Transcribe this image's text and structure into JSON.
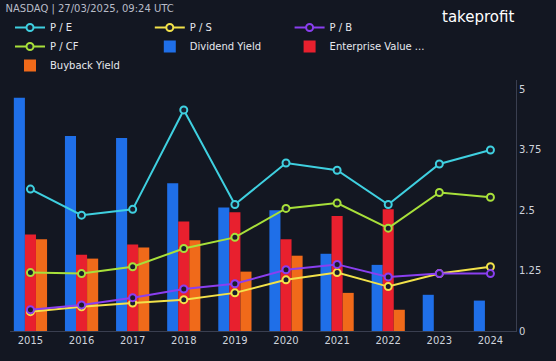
{
  "chart_data": {
    "type": "line",
    "title": "NASDAQ | 27/03/2025, 09:24 UTC",
    "annotations": [
      {
        "text": "takeprofit"
      }
    ],
    "x": [
      2015,
      2016,
      2017,
      2018,
      2019,
      2020,
      2021,
      2022,
      2023,
      2024
    ],
    "xlim": [
      2014.6,
      2024.5
    ],
    "xticks": [
      2015,
      2016,
      2017,
      2018,
      2019,
      2020,
      2021,
      2022,
      2023,
      2024
    ],
    "ylim": [
      0,
      5.2
    ],
    "yticks": [
      0,
      1.25,
      2.5,
      3.75,
      5
    ],
    "grid": false,
    "legend": "top",
    "series": [
      {
        "name": "P / E",
        "type": "line",
        "marker": "circle",
        "color": "#3fd0e0",
        "values": [
          2.94,
          2.4,
          2.52,
          4.58,
          2.62,
          3.48,
          3.33,
          2.62,
          3.46,
          3.75
        ]
      },
      {
        "name": "P / S",
        "type": "line",
        "marker": "circle",
        "color": "#f2e24a",
        "values": [
          0.4,
          0.5,
          0.58,
          0.65,
          0.79,
          1.06,
          1.21,
          0.92,
          1.19,
          1.33
        ]
      },
      {
        "name": "P / B",
        "type": "line",
        "marker": "circle",
        "color": "#8a3ff0",
        "values": [
          0.44,
          0.54,
          0.69,
          0.87,
          0.98,
          1.27,
          1.38,
          1.12,
          1.19,
          1.19
        ]
      },
      {
        "name": "P / CF",
        "type": "line",
        "marker": "circle",
        "color": "#a8e03a",
        "values": [
          1.21,
          1.19,
          1.33,
          1.71,
          1.94,
          2.54,
          2.65,
          2.13,
          2.87,
          2.77
        ]
      },
      {
        "name": "Dividend Yield",
        "type": "bar",
        "color": "#1f6fe8",
        "values": [
          4.83,
          4.04,
          4.0,
          3.06,
          2.56,
          2.5,
          1.6,
          1.37,
          0.75,
          0.63
        ]
      },
      {
        "name": "Enterprise Value ...",
        "type": "bar",
        "color": "#e8202e",
        "values": [
          2.0,
          1.58,
          1.79,
          2.27,
          2.46,
          1.9,
          2.38,
          2.52,
          null,
          null
        ]
      },
      {
        "name": "Buyback Yield",
        "type": "bar",
        "color": "#f06a1a",
        "values": [
          1.9,
          1.5,
          1.73,
          1.88,
          1.23,
          1.56,
          0.79,
          0.44,
          null,
          null
        ]
      }
    ]
  }
}
